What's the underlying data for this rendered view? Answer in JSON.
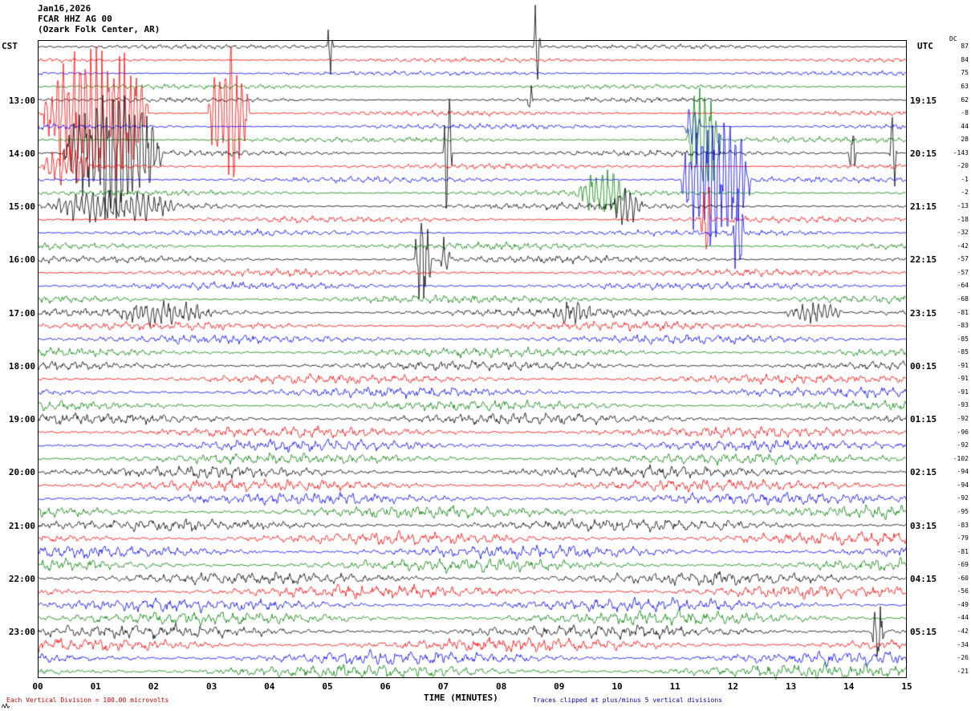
{
  "header": {
    "date": "Jan16,2026",
    "station": "FCAR HHZ AG 00",
    "location": "(Ozark Folk Center, AR)"
  },
  "axis": {
    "left_tz": "CST",
    "right_tz": "UTC",
    "dc_header": "DC",
    "x_label": "TIME (MINUTES)",
    "x_ticks": [
      "00",
      "01",
      "02",
      "03",
      "04",
      "05",
      "06",
      "07",
      "08",
      "09",
      "10",
      "11",
      "12",
      "13",
      "14",
      "15"
    ]
  },
  "footer": {
    "scale": "Each Vertical Division =  100.00 microvolts",
    "clip": "Traces clipped at plus/minus 5 vertical divisions"
  },
  "chart_data": {
    "type": "line",
    "subtype": "seismogram_helicorder",
    "station": "FCAR HHZ AG 00",
    "station_name": "Ozark Folk Center, AR",
    "date": "Jan16,2026",
    "minutes_per_row": 15,
    "x_range": [
      0,
      15
    ],
    "rows_count": 48,
    "row_start_cst": "12:00",
    "division_microvolts": 100.0,
    "clip_divisions": 5,
    "trace_colors": [
      "#000000",
      "#ff0000",
      "#0000ff",
      "#008000"
    ],
    "time_labels": [
      {
        "row": 4,
        "cst": "13:00",
        "utc": "19:15"
      },
      {
        "row": 8,
        "cst": "14:00",
        "utc": "20:15"
      },
      {
        "row": 12,
        "cst": "15:00",
        "utc": "21:15"
      },
      {
        "row": 16,
        "cst": "16:00",
        "utc": "22:15"
      },
      {
        "row": 20,
        "cst": "17:00",
        "utc": "23:15"
      },
      {
        "row": 24,
        "cst": "18:00",
        "utc": "00:15"
      },
      {
        "row": 28,
        "cst": "19:00",
        "utc": "01:15"
      },
      {
        "row": 32,
        "cst": "20:00",
        "utc": "02:15"
      },
      {
        "row": 36,
        "cst": "21:00",
        "utc": "03:15"
      },
      {
        "row": 40,
        "cst": "22:00",
        "utc": "04:15"
      },
      {
        "row": 44,
        "cst": "23:00",
        "utc": "05:15"
      }
    ],
    "dc_offsets": [
      87,
      84,
      75,
      63,
      62,
      -8,
      44,
      28,
      -143,
      -20,
      -1,
      -2,
      -13,
      -18,
      -32,
      -42,
      -57,
      -57,
      -64,
      -68,
      -81,
      -83,
      -85,
      -85,
      -91,
      -91,
      -91,
      -93,
      -92,
      -96,
      -92,
      -102,
      -94,
      -94,
      -92,
      -95,
      -83,
      -79,
      -81,
      -69,
      -60,
      -56,
      -49,
      -44,
      -42,
      -34,
      -26,
      -21
    ],
    "noise_amplitude": [
      2.0,
      2.0,
      2.0,
      2.2,
      2.2,
      2.2,
      2.4,
      2.4,
      2.6,
      2.4,
      2.6,
      2.6,
      3.0,
      2.8,
      2.8,
      3.0,
      3.2,
      3.2,
      3.4,
      3.6,
      3.8,
      3.8,
      4.0,
      4.0,
      4.2,
      4.2,
      4.4,
      4.4,
      4.8,
      4.8,
      5.0,
      5.0,
      5.2,
      5.2,
      5.2,
      5.4,
      5.4,
      5.4,
      5.6,
      5.6,
      5.6,
      5.6,
      5.8,
      5.8,
      5.8,
      5.8,
      6.0,
      6.0
    ],
    "events": [
      {
        "row": 0,
        "start": 5.0,
        "end": 5.1,
        "amp": 22
      },
      {
        "row": 0,
        "start": 8.55,
        "end": 8.68,
        "amp": 38
      },
      {
        "row": 4,
        "start": 8.45,
        "end": 8.55,
        "amp": 16
      },
      {
        "row": 5,
        "start": 0.1,
        "end": 1.9,
        "amp": 60
      },
      {
        "row": 5,
        "start": 2.95,
        "end": 3.65,
        "amp": 58
      },
      {
        "row": 6,
        "start": 11.15,
        "end": 11.45,
        "amp": 18
      },
      {
        "row": 7,
        "start": 11.2,
        "end": 11.8,
        "amp": 46
      },
      {
        "row": 8,
        "start": 0.45,
        "end": 2.15,
        "amp": 52
      },
      {
        "row": 8,
        "start": 7.0,
        "end": 7.15,
        "amp": 55
      },
      {
        "row": 8,
        "start": 14.0,
        "end": 14.12,
        "amp": 30
      },
      {
        "row": 8,
        "start": 14.7,
        "end": 14.82,
        "amp": 32
      },
      {
        "row": 9,
        "start": 0.1,
        "end": 0.9,
        "amp": 18
      },
      {
        "row": 10,
        "start": 11.1,
        "end": 12.3,
        "amp": 55
      },
      {
        "row": 11,
        "start": 9.3,
        "end": 10.15,
        "amp": 20
      },
      {
        "row": 12,
        "start": 0.15,
        "end": 2.4,
        "amp": 13
      },
      {
        "row": 12,
        "start": 9.9,
        "end": 10.45,
        "amp": 15
      },
      {
        "row": 13,
        "start": 11.45,
        "end": 11.62,
        "amp": 45
      },
      {
        "row": 14,
        "start": 12.0,
        "end": 12.18,
        "amp": 40
      },
      {
        "row": 16,
        "start": 6.5,
        "end": 6.8,
        "amp": 36
      },
      {
        "row": 16,
        "start": 6.95,
        "end": 7.12,
        "amp": 20
      },
      {
        "row": 20,
        "start": 1.3,
        "end": 3.1,
        "amp": 9
      },
      {
        "row": 20,
        "start": 8.9,
        "end": 9.6,
        "amp": 8
      },
      {
        "row": 20,
        "start": 12.9,
        "end": 13.9,
        "amp": 9
      },
      {
        "row": 44,
        "start": 14.4,
        "end": 14.6,
        "amp": 26
      }
    ]
  }
}
